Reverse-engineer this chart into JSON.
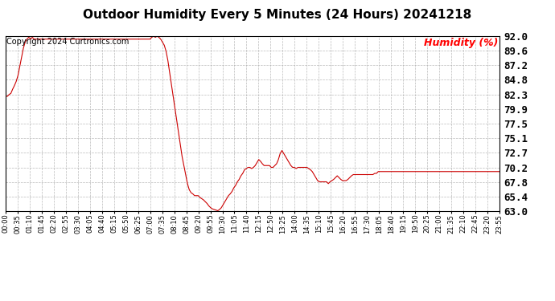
{
  "title": "Outdoor Humidity Every 5 Minutes (24 Hours) 20241218",
  "copyright_text": "Copyright 2024 Curtronics.com",
  "legend_label": "Humidity (%)",
  "legend_color": "#ff0000",
  "line_color": "#cc0000",
  "background_color": "#ffffff",
  "grid_color": "#aaaaaa",
  "text_color": "#000000",
  "ylim": [
    63.0,
    92.0
  ],
  "yticks": [
    63.0,
    65.4,
    67.8,
    70.2,
    72.7,
    75.1,
    77.5,
    79.9,
    82.3,
    84.8,
    87.2,
    89.6,
    92.0
  ],
  "humidity_data": [
    82.0,
    82.0,
    82.3,
    82.5,
    83.2,
    83.8,
    84.5,
    85.5,
    87.0,
    88.5,
    90.0,
    91.0,
    91.5,
    91.8,
    91.5,
    91.8,
    91.5,
    91.5,
    91.5,
    91.5,
    91.5,
    91.5,
    91.5,
    91.5,
    91.5,
    91.5,
    91.5,
    91.5,
    91.5,
    91.5,
    91.5,
    91.5,
    91.5,
    91.5,
    91.5,
    91.5,
    91.5,
    91.5,
    91.5,
    91.5,
    91.5,
    91.5,
    91.5,
    91.5,
    91.5,
    91.5,
    91.5,
    91.5,
    91.5,
    91.5,
    91.5,
    91.5,
    91.5,
    91.5,
    91.5,
    91.5,
    91.5,
    91.5,
    91.5,
    91.5,
    91.5,
    91.5,
    91.5,
    91.5,
    91.5,
    91.5,
    91.5,
    91.5,
    91.5,
    91.5,
    91.5,
    91.5,
    91.5,
    91.5,
    91.5,
    91.5,
    91.5,
    91.5,
    91.5,
    91.5,
    91.5,
    91.5,
    91.8,
    92.0,
    91.8,
    92.0,
    91.8,
    91.5,
    91.0,
    90.5,
    89.5,
    88.0,
    86.0,
    84.0,
    82.0,
    80.0,
    78.0,
    76.0,
    74.0,
    72.0,
    70.5,
    69.0,
    67.5,
    66.5,
    66.0,
    65.8,
    65.5,
    65.5,
    65.5,
    65.2,
    65.0,
    64.8,
    64.5,
    64.2,
    63.8,
    63.5,
    63.3,
    63.2,
    63.1,
    63.0,
    63.2,
    63.5,
    64.0,
    64.5,
    65.0,
    65.5,
    65.8,
    66.2,
    66.8,
    67.2,
    67.8,
    68.2,
    68.8,
    69.2,
    69.8,
    70.0,
    70.2,
    70.2,
    70.0,
    70.2,
    70.5,
    71.0,
    71.5,
    71.2,
    70.8,
    70.5,
    70.5,
    70.5,
    70.5,
    70.2,
    70.2,
    70.5,
    70.8,
    71.5,
    72.5,
    73.0,
    72.5,
    72.0,
    71.5,
    71.0,
    70.5,
    70.2,
    70.2,
    70.0,
    70.2,
    70.2,
    70.2,
    70.2,
    70.2,
    70.2,
    70.0,
    69.8,
    69.5,
    69.0,
    68.5,
    68.0,
    67.8,
    67.8,
    67.8,
    67.8,
    67.8,
    67.5,
    67.8,
    68.0,
    68.2,
    68.5,
    68.8,
    68.5,
    68.2,
    68.0,
    68.0,
    68.0,
    68.2,
    68.5,
    68.8,
    69.0,
    69.0,
    69.0,
    69.0,
    69.0,
    69.0,
    69.0,
    69.0,
    69.0,
    69.0,
    69.0,
    69.0,
    69.2,
    69.2,
    69.5,
    69.5,
    69.5,
    69.5,
    69.5,
    69.5,
    69.5,
    69.5,
    69.5,
    69.5,
    69.5,
    69.5,
    69.5,
    69.5,
    69.5,
    69.5,
    69.5,
    69.5,
    69.5,
    69.5,
    69.5,
    69.5,
    69.5,
    69.5,
    69.5,
    69.5,
    69.5,
    69.5,
    69.5,
    69.5,
    69.5,
    69.5,
    69.5,
    69.5,
    69.5,
    69.5,
    69.5,
    69.5,
    69.5,
    69.5,
    69.5,
    69.5,
    69.5,
    69.5,
    69.5,
    69.5,
    69.5,
    69.5,
    69.5,
    69.5,
    69.5,
    69.5,
    69.5,
    69.5,
    69.5,
    69.5,
    69.5,
    69.5,
    69.5,
    69.5,
    69.5,
    69.5,
    69.5,
    69.5,
    69.5,
    69.5,
    69.5,
    69.5,
    69.5
  ],
  "x_tick_labels": [
    "00:00",
    "00:35",
    "01:10",
    "01:45",
    "02:20",
    "02:55",
    "03:30",
    "04:05",
    "04:40",
    "05:15",
    "05:50",
    "06:25",
    "07:00",
    "07:35",
    "08:10",
    "08:45",
    "09:20",
    "09:55",
    "10:30",
    "11:05",
    "11:40",
    "12:15",
    "12:50",
    "13:25",
    "14:00",
    "14:35",
    "15:10",
    "15:45",
    "16:20",
    "16:55",
    "17:30",
    "18:05",
    "18:40",
    "19:15",
    "19:50",
    "20:25",
    "21:00",
    "21:35",
    "22:10",
    "22:45",
    "23:20",
    "23:55"
  ],
  "title_fontsize": 11,
  "ytick_fontsize": 9,
  "xtick_fontsize": 6,
  "copyright_fontsize": 7,
  "legend_fontsize": 9
}
